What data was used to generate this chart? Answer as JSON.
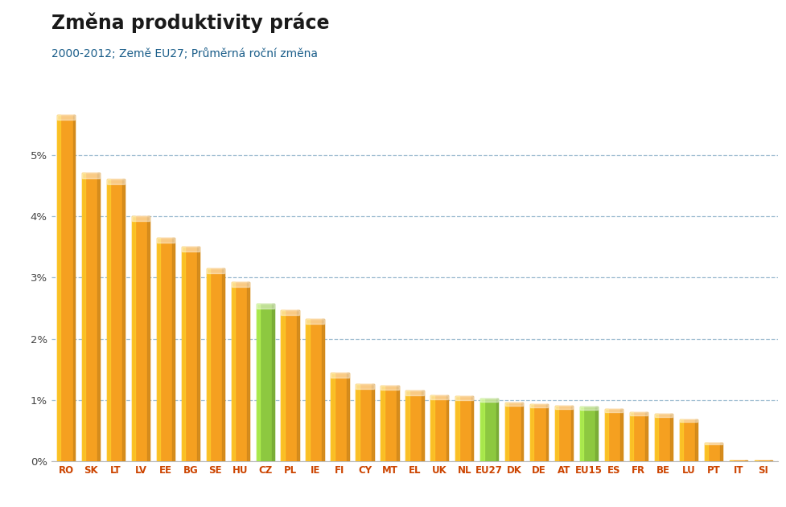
{
  "title": "Změna produktivity práce",
  "subtitle": "2000-2012; Země EU27; Průměrná roční změna",
  "categories": [
    "RO",
    "SK",
    "LT",
    "LV",
    "EE",
    "BG",
    "SE",
    "HU",
    "CZ",
    "PL",
    "IE",
    "FI",
    "CY",
    "MT",
    "EL",
    "UK",
    "NL",
    "EU27",
    "DK",
    "DE",
    "AT",
    "EU15",
    "ES",
    "FR",
    "BE",
    "LU",
    "PT",
    "IT",
    "SI"
  ],
  "values": [
    0.0565,
    0.047,
    0.046,
    0.04,
    0.0365,
    0.035,
    0.0315,
    0.0293,
    0.0257,
    0.0247,
    0.0232,
    0.0144,
    0.0126,
    0.0124,
    0.0115,
    0.0108,
    0.0106,
    0.0103,
    0.0096,
    0.0093,
    0.0091,
    0.009,
    0.0086,
    0.008,
    0.0077,
    0.0068,
    0.003,
    0.0002,
    0.0001
  ],
  "colors": [
    "#F5A020",
    "#F5A020",
    "#F5A020",
    "#F5A020",
    "#F5A020",
    "#F5A020",
    "#F5A020",
    "#F5A020",
    "#8DC840",
    "#F5A020",
    "#F5A020",
    "#F5A020",
    "#F5A020",
    "#F5A020",
    "#F5A020",
    "#F5A020",
    "#F5A020",
    "#8DC840",
    "#F5A020",
    "#F5A020",
    "#F5A020",
    "#8DC840",
    "#F5A020",
    "#F5A020",
    "#F5A020",
    "#F5A020",
    "#F5A020",
    "#F5A020",
    "#F5A020"
  ],
  "orange_color": "#F5A020",
  "green_color": "#8DC840",
  "ylim_max": 0.062,
  "yticks": [
    0.0,
    0.01,
    0.02,
    0.03,
    0.04,
    0.05
  ],
  "ytick_labels": [
    "0%",
    "1%",
    "2%",
    "3%",
    "4%",
    "5%"
  ],
  "background_color": "#FFFFFF",
  "grid_color": "#A0BED2",
  "title_color": "#1A1A1A",
  "subtitle_color": "#1B5E8A",
  "xlabel_color": "#CC4400",
  "title_fontsize": 17,
  "subtitle_fontsize": 10,
  "tick_label_fontsize": 9.5,
  "bar_width": 0.72
}
